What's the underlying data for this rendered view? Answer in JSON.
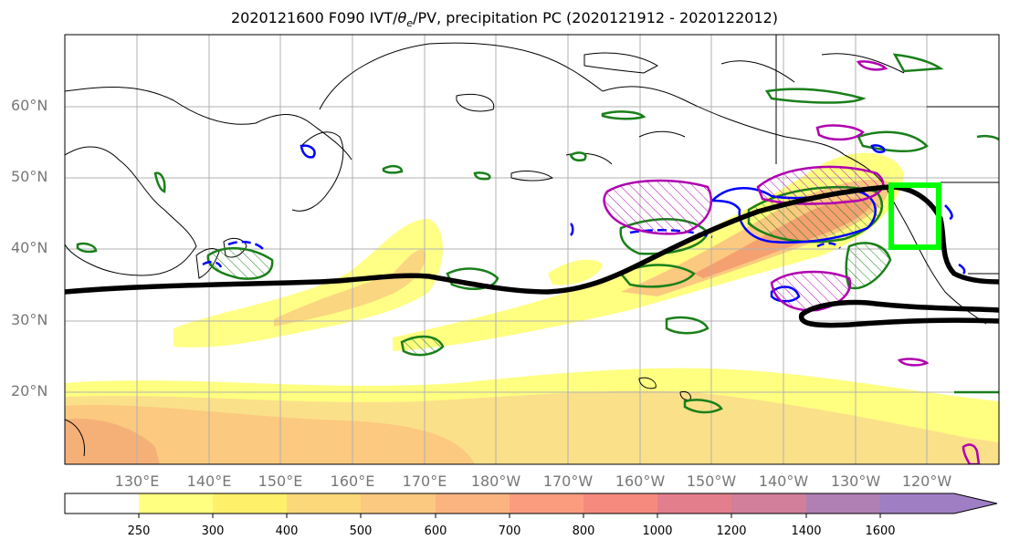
{
  "title": {
    "prefix": "2020121600 F090 IVT/",
    "theta": "θ",
    "sub": "e",
    "suffix": "/PV, precipitation PC (2020121912 - 2020122012)"
  },
  "map": {
    "lat_ticks": [
      "60°N",
      "50°N",
      "40°N",
      "30°N",
      "20°N"
    ],
    "lon_ticks": [
      "130°E",
      "140°E",
      "150°E",
      "160°E",
      "170°E",
      "180°W",
      "170°W",
      "160°W",
      "150°W",
      "140°W",
      "130°W",
      "120°W"
    ],
    "colors": {
      "land_outline": "#000000",
      "ivt_fill_low": "#ffff80",
      "ivt_fill_high": "#f5a878",
      "pv_contour": "#000000",
      "theta_e_positive": "#1a7f1a",
      "theta_e_negative": "#0000ff",
      "precip_pc": "#b000b0",
      "target_box": "#00ff00",
      "grid": "#b0b0b0"
    }
  },
  "colorbar": {
    "labels": [
      "250",
      "300",
      "400",
      "500",
      "600",
      "700",
      "800",
      "1000",
      "1200",
      "1400",
      "1600"
    ],
    "colors": [
      "#ffffff",
      "#ffff80",
      "#fff06a",
      "#fcd87a",
      "#fbc97f",
      "#fbb480",
      "#fb9c7e",
      "#f78a7e",
      "#e37f8c",
      "#d17f9a",
      "#b07fb4",
      "#a07ec4"
    ]
  }
}
